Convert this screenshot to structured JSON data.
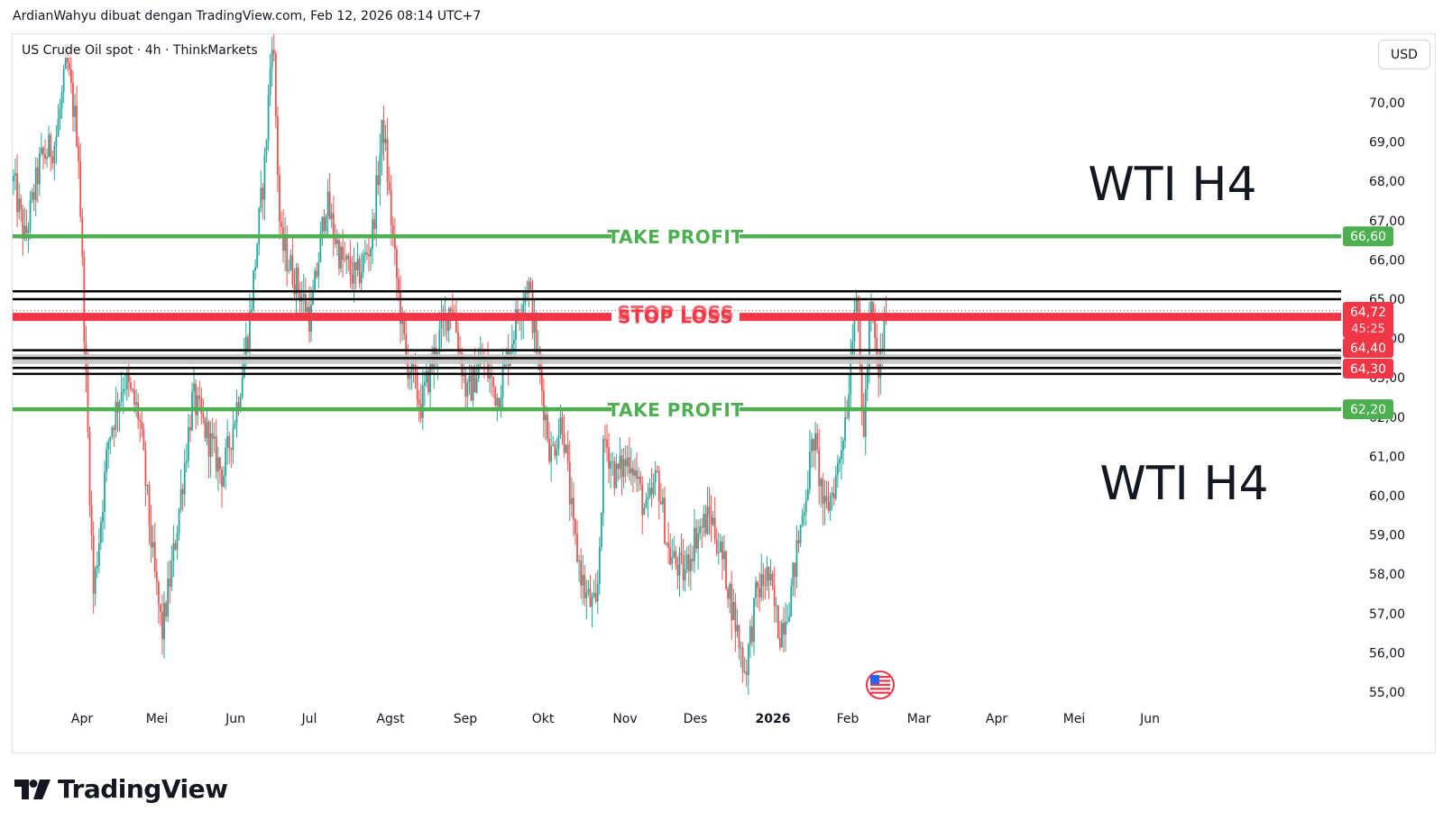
{
  "header": {
    "credit": "ArdianWahyu dibuat dengan TradingView.com, Feb 12, 2026 08:14 UTC+7"
  },
  "legend": {
    "symbol": "US Crude Oil spot · 4h · ThinkMarkets"
  },
  "currency": "USD",
  "footer": {
    "brand": "TradingView"
  },
  "colors": {
    "up": "#26a69a",
    "down": "#ef5350",
    "take_profit": "#4caf50",
    "stop_loss": "#f23645",
    "zone": "#c4c4c4",
    "line": "#000000"
  },
  "chart_data": {
    "type": "candlestick",
    "title": "",
    "ylim": [
      54.6,
      71.6
    ],
    "y_ticks": [
      "55,00",
      "56,00",
      "57,00",
      "58,00",
      "59,00",
      "60,00",
      "61,00",
      "62,00",
      "63,00",
      "64,00",
      "65,00",
      "66,00",
      "67,00",
      "68,00",
      "69,00",
      "70,00"
    ],
    "x_ticks": [
      {
        "label": "Apr",
        "bold": false
      },
      {
        "label": "Mei",
        "bold": false
      },
      {
        "label": "Jun",
        "bold": false
      },
      {
        "label": "Jul",
        "bold": false
      },
      {
        "label": "Agst",
        "bold": false
      },
      {
        "label": "Sep",
        "bold": false
      },
      {
        "label": "Okt",
        "bold": false
      },
      {
        "label": "Nov",
        "bold": false
      },
      {
        "label": "Des",
        "bold": false
      },
      {
        "label": "2026",
        "bold": true
      },
      {
        "label": "Feb",
        "bold": false
      },
      {
        "label": "Mar",
        "bold": false
      },
      {
        "label": "Apr",
        "bold": false
      },
      {
        "label": "Mei",
        "bold": false
      },
      {
        "label": "Jun",
        "bold": false
      }
    ],
    "close_path": [
      {
        "m": -0.9,
        "p": 68.0
      },
      {
        "m": -0.75,
        "p": 66.5
      },
      {
        "m": -0.55,
        "p": 68.5
      },
      {
        "m": -0.35,
        "p": 69.0
      },
      {
        "m": -0.2,
        "p": 71.0
      },
      {
        "m": -0.05,
        "p": 69.0
      },
      {
        "m": 0.05,
        "p": 63.0
      },
      {
        "m": 0.15,
        "p": 57.5
      },
      {
        "m": 0.35,
        "p": 61.5
      },
      {
        "m": 0.55,
        "p": 63.0
      },
      {
        "m": 0.75,
        "p": 62.0
      },
      {
        "m": 0.95,
        "p": 58.0
      },
      {
        "m": 1.05,
        "p": 56.5
      },
      {
        "m": 1.2,
        "p": 58.5
      },
      {
        "m": 1.45,
        "p": 62.5
      },
      {
        "m": 1.65,
        "p": 61.5
      },
      {
        "m": 1.85,
        "p": 60.5
      },
      {
        "m": 2.05,
        "p": 62.5
      },
      {
        "m": 2.2,
        "p": 64.5
      },
      {
        "m": 2.4,
        "p": 68.5
      },
      {
        "m": 2.5,
        "p": 72.0
      },
      {
        "m": 2.6,
        "p": 66.5
      },
      {
        "m": 2.8,
        "p": 65.5
      },
      {
        "m": 3.0,
        "p": 64.5
      },
      {
        "m": 3.2,
        "p": 67.5
      },
      {
        "m": 3.4,
        "p": 66.0
      },
      {
        "m": 3.6,
        "p": 65.5
      },
      {
        "m": 3.8,
        "p": 66.5
      },
      {
        "m": 3.95,
        "p": 69.5
      },
      {
        "m": 4.1,
        "p": 66.0
      },
      {
        "m": 4.25,
        "p": 63.5
      },
      {
        "m": 4.45,
        "p": 62.3
      },
      {
        "m": 4.65,
        "p": 63.8
      },
      {
        "m": 4.85,
        "p": 65.0
      },
      {
        "m": 5.05,
        "p": 62.5
      },
      {
        "m": 5.25,
        "p": 63.5
      },
      {
        "m": 5.45,
        "p": 62.5
      },
      {
        "m": 5.7,
        "p": 64.5
      },
      {
        "m": 5.85,
        "p": 65.5
      },
      {
        "m": 6.0,
        "p": 63.2
      },
      {
        "m": 6.15,
        "p": 61.0
      },
      {
        "m": 6.3,
        "p": 62.0
      },
      {
        "m": 6.45,
        "p": 59.0
      },
      {
        "m": 6.6,
        "p": 57.5
      },
      {
        "m": 6.75,
        "p": 57.0
      },
      {
        "m": 6.85,
        "p": 61.5
      },
      {
        "m": 7.0,
        "p": 60.5
      },
      {
        "m": 7.2,
        "p": 61.0
      },
      {
        "m": 7.4,
        "p": 59.5
      },
      {
        "m": 7.55,
        "p": 60.5
      },
      {
        "m": 7.7,
        "p": 58.5
      },
      {
        "m": 7.9,
        "p": 58.0
      },
      {
        "m": 8.05,
        "p": 59.0
      },
      {
        "m": 8.25,
        "p": 59.5
      },
      {
        "m": 8.45,
        "p": 58.0
      },
      {
        "m": 8.55,
        "p": 57.0
      },
      {
        "m": 8.7,
        "p": 55.5
      },
      {
        "m": 8.85,
        "p": 57.5
      },
      {
        "m": 9.0,
        "p": 58.0
      },
      {
        "m": 9.15,
        "p": 56.5
      },
      {
        "m": 9.3,
        "p": 57.5
      },
      {
        "m": 9.45,
        "p": 59.5
      },
      {
        "m": 9.6,
        "p": 61.5
      },
      {
        "m": 9.75,
        "p": 59.5
      },
      {
        "m": 9.9,
        "p": 60.5
      },
      {
        "m": 10.05,
        "p": 62.5
      },
      {
        "m": 10.15,
        "p": 65.5
      },
      {
        "m": 10.25,
        "p": 61.5
      },
      {
        "m": 10.35,
        "p": 64.8
      },
      {
        "m": 10.45,
        "p": 63.0
      },
      {
        "m": 10.55,
        "p": 64.7
      }
    ],
    "last_price": "64,72",
    "countdown": "45:25",
    "price_tags": [
      {
        "value": 66.6,
        "label": "66,60",
        "color": "#4caf50"
      },
      {
        "value": 64.72,
        "label": "64,72",
        "color": "#f23645",
        "sub": "45:25"
      },
      {
        "value": 64.4,
        "label": "64,40",
        "color": "#f23645"
      },
      {
        "value": 64.3,
        "label": "64,30",
        "color": "#f23645"
      },
      {
        "value": 62.2,
        "label": "62,20",
        "color": "#4caf50"
      }
    ],
    "levels": [
      {
        "name": "take-profit-upper",
        "value": 66.6,
        "label": "TAKE PROFIT",
        "color": "#4caf50"
      },
      {
        "name": "stop-loss",
        "value": 64.55,
        "label": "STOP LOSS",
        "color": "#f23645"
      },
      {
        "name": "take-profit-lower",
        "value": 62.2,
        "label": "TAKE PROFIT",
        "color": "#4caf50"
      }
    ],
    "resistance_lines": [
      65.2,
      65.0
    ],
    "support_zone": [
      63.35,
      63.6
    ],
    "support_lines": [
      63.1,
      63.25,
      63.5,
      63.7
    ],
    "annotations": [
      "WTI H4",
      "WTI H4"
    ]
  }
}
